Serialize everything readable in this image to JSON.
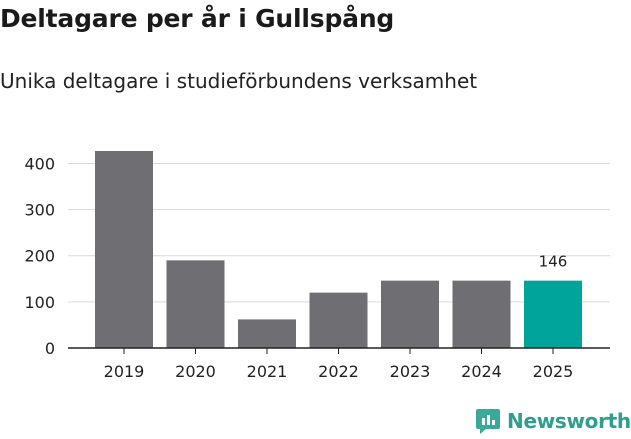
{
  "title": "Deltagare per år i Gullspång",
  "subtitle": "Unika deltagare i studieförbundens verksamhet",
  "logo_text": "Newsworthy",
  "colors": {
    "bar": "#6e6e73",
    "highlight": "#00a498",
    "grid": "#d9d9d9",
    "axis": "#222222",
    "logo": "#2e9e8f"
  },
  "chart_data": {
    "type": "bar",
    "title": "Deltagare per år i Gullspång",
    "subtitle": "Unika deltagare i studieförbundens verksamhet",
    "xlabel": "",
    "ylabel": "",
    "categories": [
      "2019",
      "2020",
      "2021",
      "2022",
      "2023",
      "2024",
      "2025"
    ],
    "values": [
      427,
      190,
      62,
      120,
      146,
      146,
      146
    ],
    "highlight_index": 6,
    "data_labels": [
      {
        "index": 6,
        "text": "146"
      }
    ],
    "ylim": [
      0,
      427
    ],
    "yticks": [
      0,
      100,
      200,
      300,
      400
    ],
    "grid": true,
    "legend": "none"
  }
}
